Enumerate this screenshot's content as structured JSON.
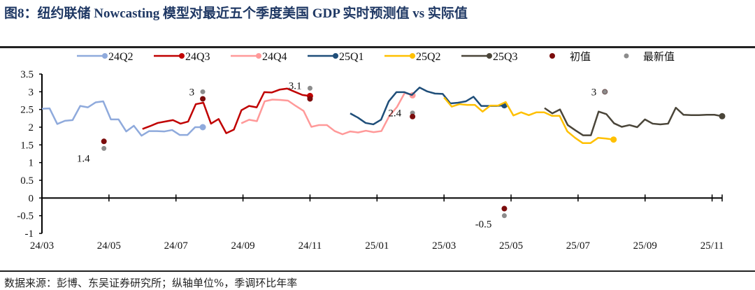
{
  "title": "图8：纽约联储 Nowcasting 模型对最近五个季度美国 GDP 实时预测值 vs 实际值",
  "source": "数据来源：彭博、东吴证券研究所；纵轴单位%，季调环比年率",
  "chart_data": {
    "type": "line",
    "title": "图8：纽约联储 Nowcasting 模型对最近五个季度美国 GDP 实时预测值 vs 实际值",
    "xlabel": "",
    "ylabel": "%",
    "x_unit": "months since 2024-03",
    "xlim": [
      0,
      20.3
    ],
    "ylim": [
      -1,
      3.5
    ],
    "y_ticks": [
      3.5,
      3,
      2.5,
      2,
      1.5,
      1,
      0.5,
      0,
      -0.5,
      -1
    ],
    "y_tick_labels": [
      "3.5",
      "3",
      "2.5",
      "2",
      "1.5",
      "1",
      "0.5",
      "0",
      "-0.5",
      "-1"
    ],
    "x_ticks": [
      0,
      2,
      4,
      6,
      8,
      10,
      12,
      14,
      16,
      18,
      20
    ],
    "x_tick_labels": [
      "24/03",
      "24/05",
      "24/07",
      "24/09",
      "24/11",
      "25/01",
      "25/03",
      "25/05",
      "25/07",
      "25/09",
      "25/11"
    ],
    "grid": false,
    "legend_position": "top",
    "series": [
      {
        "name": "24Q2",
        "color": "#8FAADC",
        "x_start": 0,
        "x_end": 4.8,
        "values": [
          2.52,
          2.53,
          2.09,
          2.18,
          2.2,
          2.6,
          2.56,
          2.7,
          2.73,
          2.22,
          2.22,
          1.88,
          2.04,
          1.76,
          1.89,
          1.89,
          1.88,
          1.92,
          1.78,
          1.78,
          2.0,
          2.0
        ]
      },
      {
        "name": "24Q3",
        "color": "#C00000",
        "x_start": 3.0,
        "x_end": 8.0,
        "values": [
          1.95,
          2.03,
          2.12,
          2.16,
          2.2,
          2.1,
          2.16,
          2.65,
          2.69,
          2.1,
          2.23,
          1.83,
          1.93,
          2.48,
          2.6,
          2.56,
          2.99,
          2.98,
          3.06,
          3.09,
          3.0,
          2.91,
          2.88
        ]
      },
      {
        "name": "24Q4",
        "color": "#FF9999",
        "x_start": 5.95,
        "x_end": 11.06,
        "values": [
          2.11,
          2.21,
          2.17,
          2.73,
          2.78,
          2.77,
          2.75,
          2.6,
          2.46,
          2.01,
          2.06,
          2.06,
          1.89,
          1.8,
          1.88,
          1.85,
          1.9,
          1.86,
          1.89,
          2.31,
          2.57,
          2.97,
          2.9
        ]
      },
      {
        "name": "25Q1",
        "color": "#1F4E79",
        "x_start": 9.2,
        "x_end": 13.8,
        "values": [
          2.39,
          2.27,
          2.12,
          2.08,
          2.21,
          2.73,
          2.99,
          2.99,
          2.91,
          3.12,
          3.01,
          2.95,
          2.94,
          2.67,
          2.69,
          2.73,
          2.86,
          2.6,
          2.6,
          2.6,
          2.62
        ]
      },
      {
        "name": "25Q2",
        "color": "#FFC000",
        "x_start": 12.0,
        "x_end": 17.06,
        "values": [
          2.84,
          2.58,
          2.65,
          2.63,
          2.63,
          2.44,
          2.61,
          2.61,
          2.71,
          2.33,
          2.42,
          2.34,
          2.42,
          2.42,
          2.32,
          2.32,
          1.88,
          1.7,
          1.55,
          1.55,
          1.7,
          1.68,
          1.65
        ]
      },
      {
        "name": "25Q3",
        "color": "#4A4539",
        "x_start": 15.0,
        "x_end": 20.3,
        "values": [
          2.54,
          2.39,
          2.5,
          2.06,
          1.91,
          1.77,
          1.77,
          2.44,
          2.37,
          2.11,
          2.01,
          2.06,
          2.0,
          2.22,
          2.1,
          2.08,
          2.1,
          2.55,
          2.35,
          2.34,
          2.34,
          2.35,
          2.35,
          2.31
        ]
      }
    ],
    "markers": {
      "initial": {
        "name": "初值",
        "color": "#7B0C0C"
      },
      "latest": {
        "name": "最新值",
        "color": "#8C8C8C"
      }
    },
    "releases": [
      {
        "quarter": "24Q2",
        "x": 1.85,
        "initial": 1.6,
        "latest": 1.4,
        "label": "1.4"
      },
      {
        "quarter": "24Q3",
        "x": 4.8,
        "initial": 2.8,
        "latest": 3.0,
        "label": "3"
      },
      {
        "quarter": "24Q4",
        "x": 8.0,
        "initial": 2.8,
        "latest": 3.1,
        "label": "3.1"
      },
      {
        "quarter": "25Q1",
        "x": 11.06,
        "initial": 2.3,
        "latest": 2.4,
        "label": "2.4"
      },
      {
        "quarter": "25Q2",
        "x": 13.8,
        "initial": -0.3,
        "latest": -0.5,
        "label": "-0.5"
      },
      {
        "quarter": "25Q3",
        "x": 16.8,
        "initial": null,
        "latest": 3.0,
        "label": "3"
      }
    ]
  }
}
